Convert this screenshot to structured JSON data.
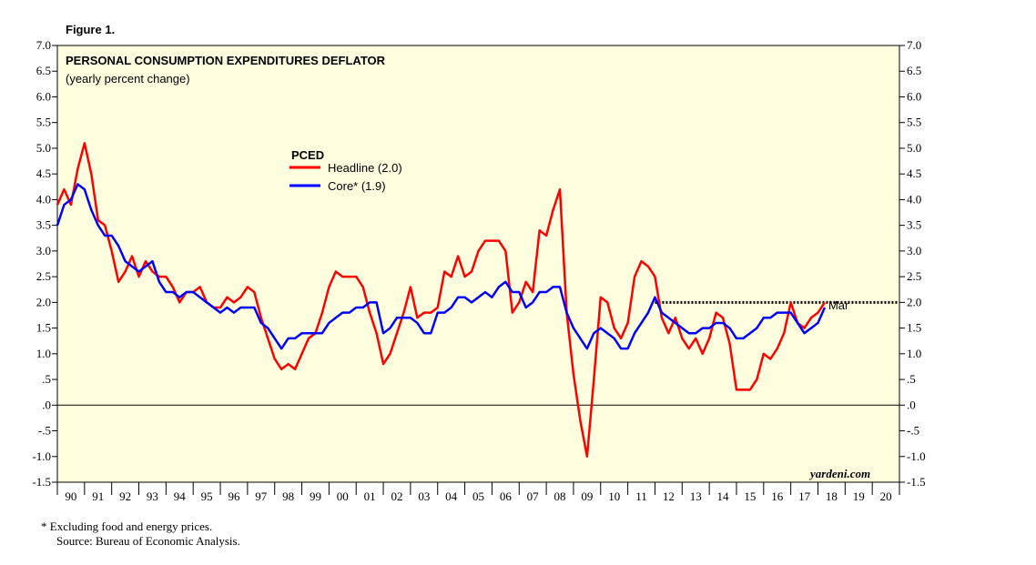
{
  "chart_data": {
    "type": "line",
    "figure_label": "Figure 1.",
    "title": "PERSONAL CONSUMPTION EXPENDITURES DEFLATOR",
    "subtitle": "(yearly percent change)",
    "legend_title": "PCED",
    "annotation": "Mar",
    "watermark": "yardeni.com",
    "footnote": "*  Excluding food and energy prices.",
    "source": "Source: Bureau of Economic Analysis.",
    "xlim": [
      1990,
      2021
    ],
    "ylim": [
      -1.5,
      7
    ],
    "xticks": [
      {
        "value": 1990,
        "label": "90"
      },
      {
        "value": 1991,
        "label": "91"
      },
      {
        "value": 1992,
        "label": "92"
      },
      {
        "value": 1993,
        "label": "93"
      },
      {
        "value": 1994,
        "label": "94"
      },
      {
        "value": 1995,
        "label": "95"
      },
      {
        "value": 1996,
        "label": "96"
      },
      {
        "value": 1997,
        "label": "97"
      },
      {
        "value": 1998,
        "label": "98"
      },
      {
        "value": 1999,
        "label": "99"
      },
      {
        "value": 2000,
        "label": "00"
      },
      {
        "value": 2001,
        "label": "01"
      },
      {
        "value": 2002,
        "label": "02"
      },
      {
        "value": 2003,
        "label": "03"
      },
      {
        "value": 2004,
        "label": "04"
      },
      {
        "value": 2005,
        "label": "05"
      },
      {
        "value": 2006,
        "label": "06"
      },
      {
        "value": 2007,
        "label": "07"
      },
      {
        "value": 2008,
        "label": "08"
      },
      {
        "value": 2009,
        "label": "09"
      },
      {
        "value": 2010,
        "label": "10"
      },
      {
        "value": 2011,
        "label": "11"
      },
      {
        "value": 2012,
        "label": "12"
      },
      {
        "value": 2013,
        "label": "13"
      },
      {
        "value": 2014,
        "label": "14"
      },
      {
        "value": 2015,
        "label": "15"
      },
      {
        "value": 2016,
        "label": "16"
      },
      {
        "value": 2017,
        "label": "17"
      },
      {
        "value": 2018,
        "label": "18"
      },
      {
        "value": 2019,
        "label": "19"
      },
      {
        "value": 2020,
        "label": "20"
      }
    ],
    "yticks": [
      {
        "value": 7,
        "label": "7.0"
      },
      {
        "value": 6.5,
        "label": "6.5"
      },
      {
        "value": 6,
        "label": "6.0"
      },
      {
        "value": 5.5,
        "label": "5.5"
      },
      {
        "value": 5,
        "label": "5.0"
      },
      {
        "value": 4.5,
        "label": "4.5"
      },
      {
        "value": 4,
        "label": "4.0"
      },
      {
        "value": 3.5,
        "label": "3.5"
      },
      {
        "value": 3,
        "label": "3.0"
      },
      {
        "value": 2.5,
        "label": "2.5"
      },
      {
        "value": 2,
        "label": "2.0"
      },
      {
        "value": 1.5,
        "label": "1.5"
      },
      {
        "value": 1,
        "label": "1.0"
      },
      {
        "value": 0.5,
        "label": ".5"
      },
      {
        "value": 0,
        "label": ".0"
      },
      {
        "value": -0.5,
        "label": "-.5"
      },
      {
        "value": -1,
        "label": "-1.0"
      },
      {
        "value": -1.5,
        "label": "-1.5"
      }
    ],
    "reference_line": {
      "y": 2,
      "x_start": 2012
    },
    "x": [
      1990,
      1990.25,
      1990.5,
      1990.75,
      1991,
      1991.25,
      1991.5,
      1991.75,
      1992,
      1992.25,
      1992.5,
      1992.75,
      1993,
      1993.25,
      1993.5,
      1993.75,
      1994,
      1994.25,
      1994.5,
      1994.75,
      1995,
      1995.25,
      1995.5,
      1995.75,
      1996,
      1996.25,
      1996.5,
      1996.75,
      1997,
      1997.25,
      1997.5,
      1997.75,
      1998,
      1998.25,
      1998.5,
      1998.75,
      1999,
      1999.25,
      1999.5,
      1999.75,
      2000,
      2000.25,
      2000.5,
      2000.75,
      2001,
      2001.25,
      2001.5,
      2001.75,
      2002,
      2002.25,
      2002.5,
      2002.75,
      2003,
      2003.25,
      2003.5,
      2003.75,
      2004,
      2004.25,
      2004.5,
      2004.75,
      2005,
      2005.25,
      2005.5,
      2005.75,
      2006,
      2006.25,
      2006.5,
      2006.75,
      2007,
      2007.25,
      2007.5,
      2007.75,
      2008,
      2008.25,
      2008.5,
      2008.75,
      2009,
      2009.25,
      2009.5,
      2009.75,
      2010,
      2010.25,
      2010.5,
      2010.75,
      2011,
      2011.25,
      2011.5,
      2011.75,
      2012,
      2012.25,
      2012.5,
      2012.75,
      2013,
      2013.25,
      2013.5,
      2013.75,
      2014,
      2014.25,
      2014.5,
      2014.75,
      2015,
      2015.25,
      2015.5,
      2015.75,
      2016,
      2016.25,
      2016.5,
      2016.75,
      2017,
      2017.25,
      2017.5,
      2017.75,
      2018,
      2018.25
    ],
    "series": [
      {
        "name": "Headline (2.0)",
        "color": "#ff0000",
        "values": [
          3.9,
          4.2,
          3.9,
          4.6,
          5.1,
          4.5,
          3.6,
          3.5,
          3.0,
          2.4,
          2.6,
          2.9,
          2.5,
          2.8,
          2.6,
          2.5,
          2.5,
          2.3,
          2.0,
          2.2,
          2.2,
          2.3,
          2.0,
          1.9,
          1.9,
          2.1,
          2.0,
          2.1,
          2.3,
          2.2,
          1.7,
          1.3,
          0.9,
          0.7,
          0.8,
          0.7,
          1.0,
          1.3,
          1.4,
          1.8,
          2.3,
          2.6,
          2.5,
          2.5,
          2.5,
          2.3,
          1.8,
          1.4,
          0.8,
          1.0,
          1.4,
          1.8,
          2.3,
          1.7,
          1.8,
          1.8,
          1.9,
          2.6,
          2.5,
          2.9,
          2.5,
          2.6,
          3.0,
          3.2,
          3.2,
          3.2,
          3.0,
          1.8,
          2.0,
          2.4,
          2.2,
          3.4,
          3.3,
          3.8,
          4.2,
          1.8,
          0.6,
          -0.3,
          -1.0,
          0.5,
          2.1,
          2.0,
          1.5,
          1.3,
          1.6,
          2.5,
          2.8,
          2.7,
          2.5,
          1.7,
          1.4,
          1.7,
          1.3,
          1.1,
          1.3,
          1.0,
          1.3,
          1.8,
          1.7,
          1.2,
          0.3,
          0.3,
          0.3,
          0.5,
          1.0,
          0.9,
          1.1,
          1.4,
          2.0,
          1.6,
          1.5,
          1.7,
          1.8,
          2.0
        ]
      },
      {
        "name": "Core* (1.9)",
        "color": "#0000ff",
        "values": [
          3.5,
          3.9,
          4.0,
          4.3,
          4.2,
          3.8,
          3.5,
          3.3,
          3.3,
          3.1,
          2.8,
          2.7,
          2.6,
          2.7,
          2.8,
          2.4,
          2.2,
          2.2,
          2.1,
          2.2,
          2.2,
          2.1,
          2.0,
          1.9,
          1.8,
          1.9,
          1.8,
          1.9,
          1.9,
          1.9,
          1.6,
          1.5,
          1.3,
          1.1,
          1.3,
          1.3,
          1.4,
          1.4,
          1.4,
          1.4,
          1.6,
          1.7,
          1.8,
          1.8,
          1.9,
          1.9,
          2.0,
          2.0,
          1.4,
          1.5,
          1.7,
          1.7,
          1.7,
          1.6,
          1.4,
          1.4,
          1.8,
          1.8,
          1.9,
          2.1,
          2.1,
          2.0,
          2.1,
          2.2,
          2.1,
          2.3,
          2.4,
          2.2,
          2.2,
          1.9,
          2.0,
          2.2,
          2.2,
          2.3,
          2.3,
          1.8,
          1.5,
          1.3,
          1.1,
          1.4,
          1.5,
          1.4,
          1.3,
          1.1,
          1.1,
          1.4,
          1.6,
          1.8,
          2.1,
          1.8,
          1.7,
          1.6,
          1.5,
          1.4,
          1.4,
          1.5,
          1.5,
          1.6,
          1.6,
          1.5,
          1.3,
          1.3,
          1.4,
          1.5,
          1.7,
          1.7,
          1.8,
          1.8,
          1.8,
          1.6,
          1.4,
          1.5,
          1.6,
          1.9
        ]
      }
    ]
  }
}
